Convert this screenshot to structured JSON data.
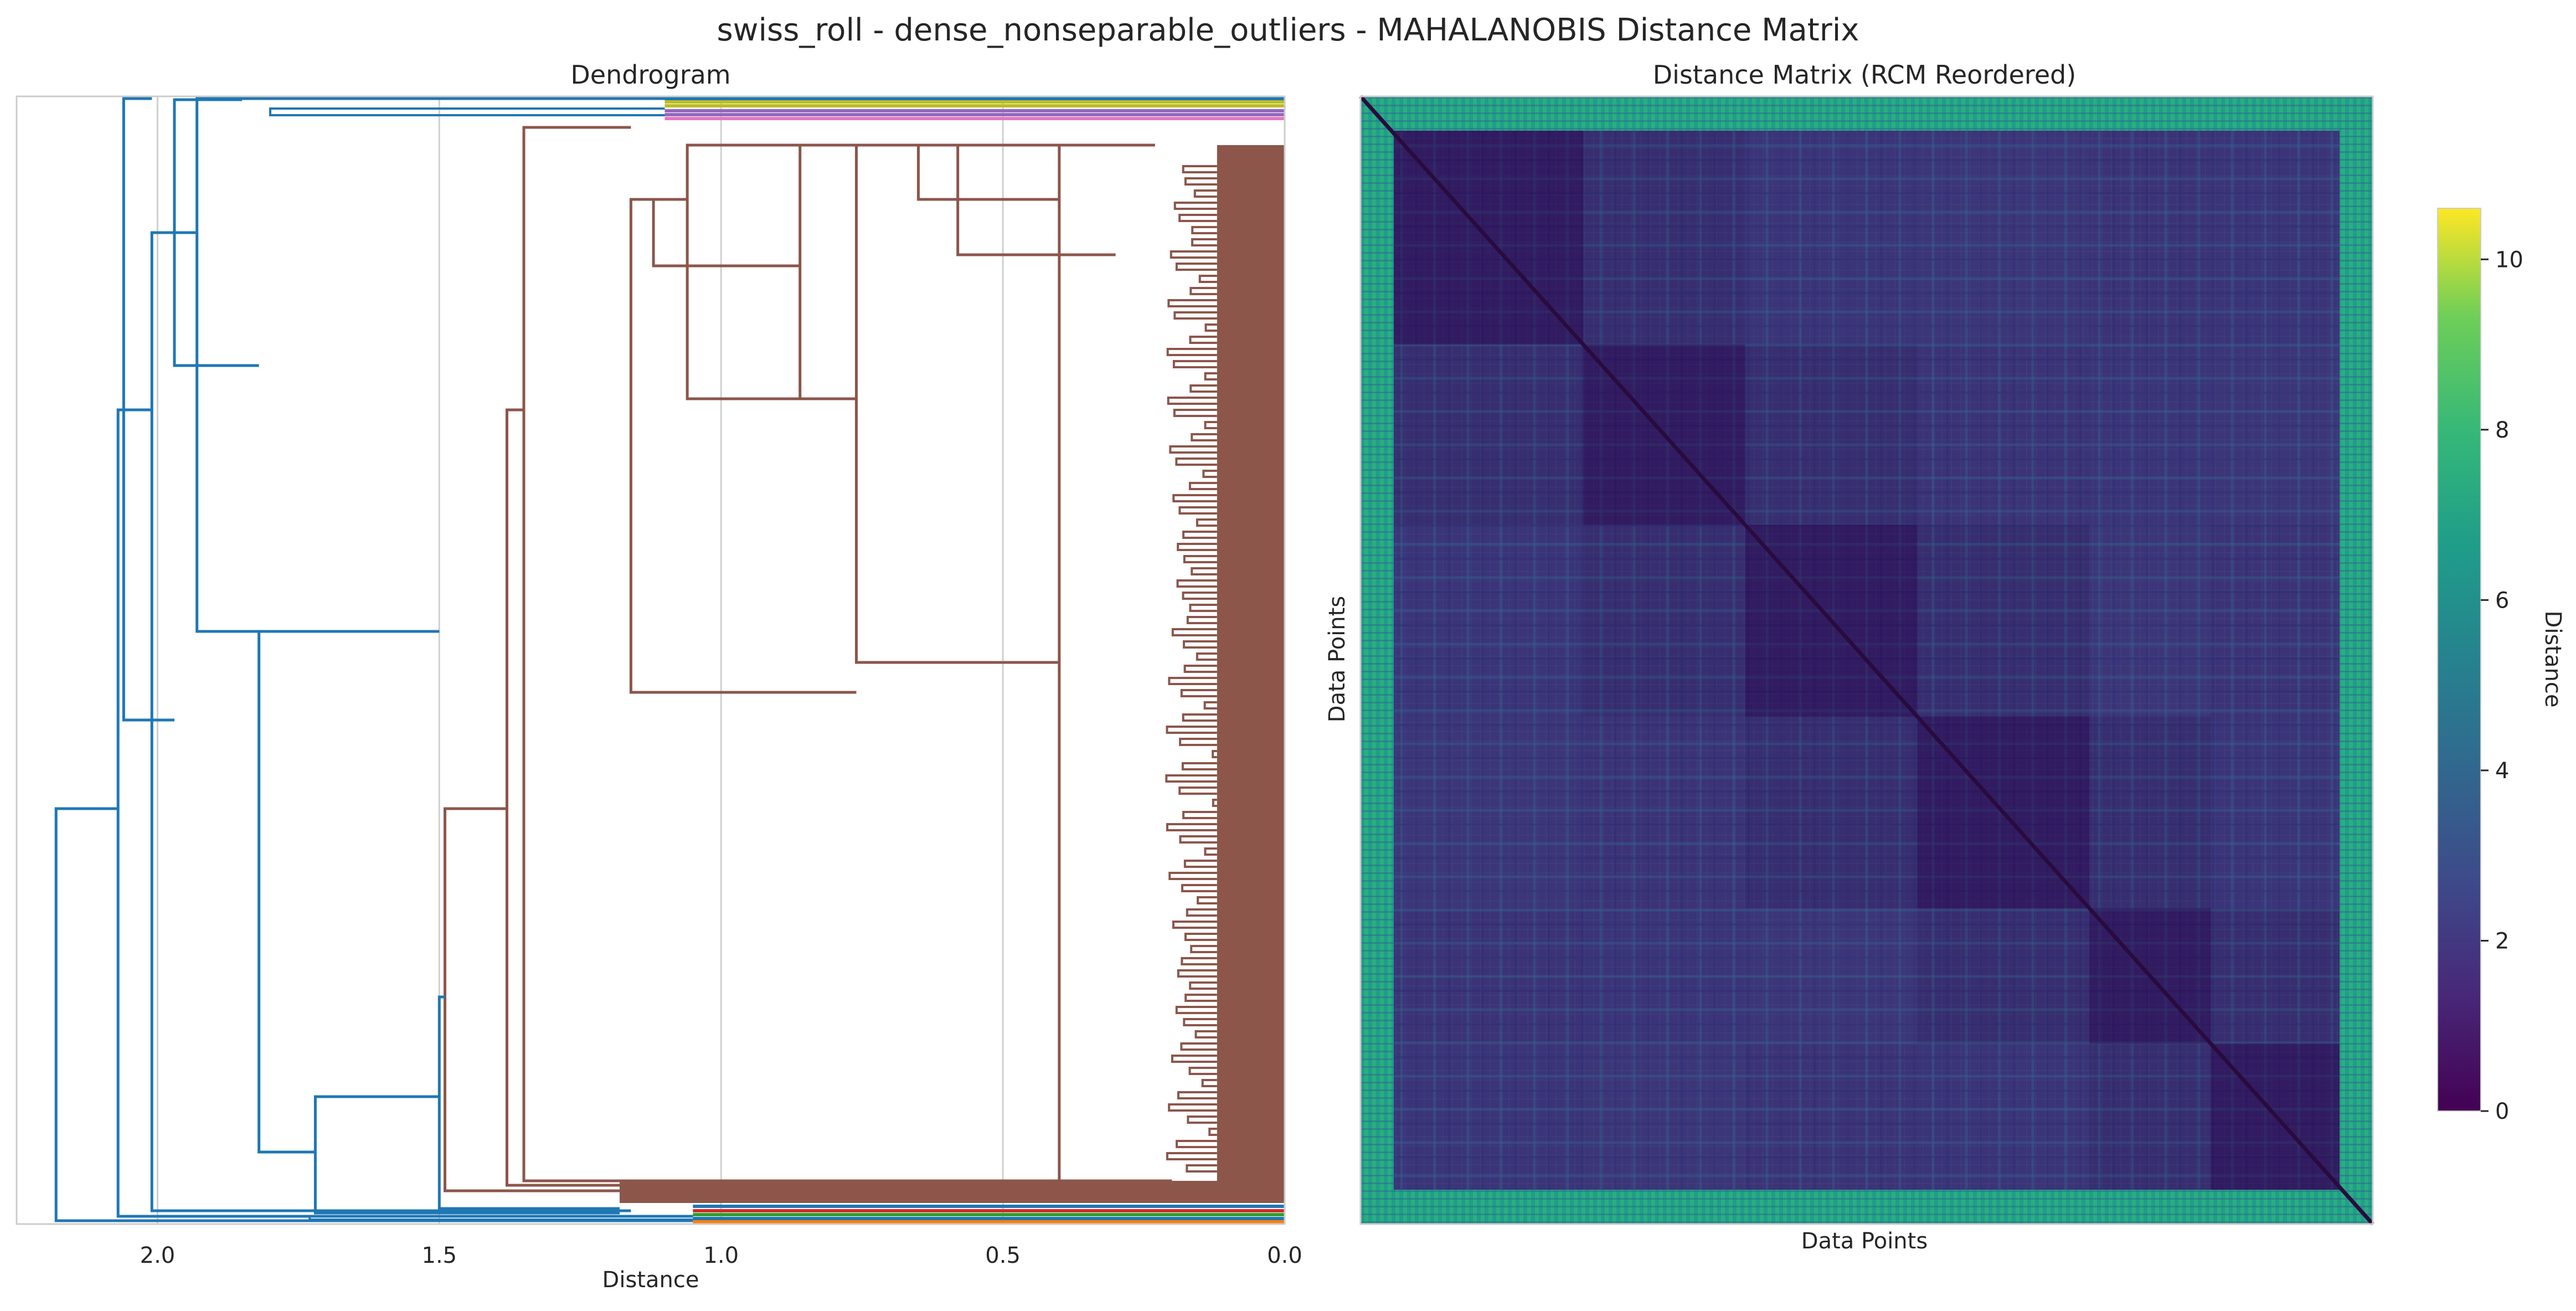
{
  "figure": {
    "suptitle": "swiss_roll - dense_nonseparable_outliers - MAHALANOBIS Distance Matrix"
  },
  "chart_data": [
    {
      "type": "dendrogram",
      "title": "Dendrogram",
      "xlabel": "Distance",
      "ylabel": "",
      "xlim": [
        2.25,
        0.0
      ],
      "x_inverted": true,
      "xticks": [
        2.0,
        1.5,
        1.0,
        0.5,
        0.0
      ],
      "xtick_labels": [
        "2.0",
        "1.5",
        "1.0",
        "0.5",
        "0.0"
      ],
      "grid": "vertical",
      "colors": {
        "top_level": "#1f77b4",
        "main_cluster": "#8c564b",
        "small_clusters": [
          "#bcbd22",
          "#9467bd",
          "#ff7f0e",
          "#d62728",
          "#2ca02c",
          "#17becf",
          "#e377c2"
        ]
      },
      "approx_merge_heights": [
        2.18,
        2.07,
        2.06,
        2.01,
        1.97,
        1.93,
        1.82,
        1.72,
        1.5,
        1.38,
        1.35,
        1.16,
        1.06,
        0.76,
        0.4,
        0.2
      ]
    },
    {
      "type": "heatmap",
      "title": "Distance Matrix (RCM Reordered)",
      "xlabel": "Data Points",
      "ylabel": "Data Points",
      "colormap": "viridis",
      "colorbar": {
        "label": "Distance",
        "range": [
          0,
          10.6
        ],
        "ticks": [
          0,
          2,
          4,
          6,
          8,
          10
        ],
        "tick_labels": [
          "0",
          "2",
          "4",
          "6",
          "8",
          "10"
        ]
      },
      "typical_within_cluster_distance": [
        1.0,
        2.5
      ],
      "outlier_border_distance": [
        5.0,
        7.0
      ],
      "diagonal": 0
    }
  ]
}
